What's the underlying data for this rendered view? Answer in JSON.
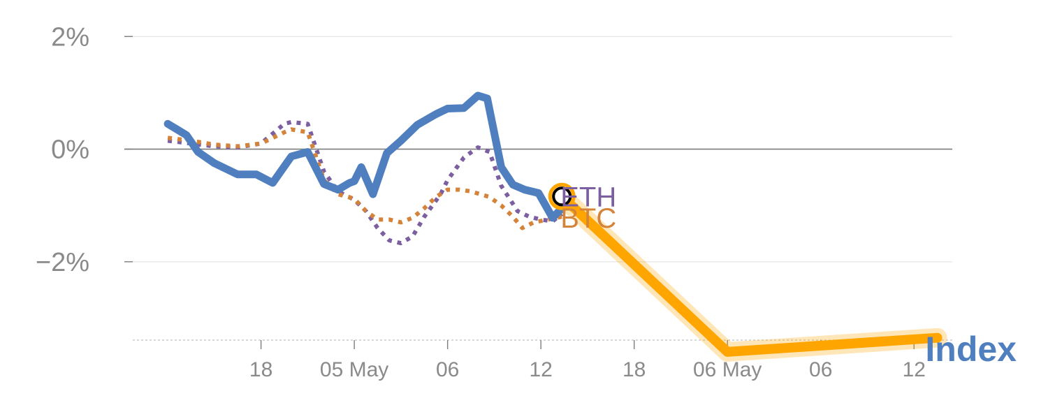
{
  "chart_data": {
    "type": "line",
    "y_tick_labels": [
      "2%",
      "0%",
      "−2%"
    ],
    "y_tick_values": [
      2,
      0,
      -2
    ],
    "ylim": [
      -3.8,
      2.4
    ],
    "x_tick_labels": [
      "18",
      "05 May",
      "06",
      "12",
      "18",
      "06 May",
      "06",
      "12"
    ],
    "x_tick_positions": [
      4,
      8,
      12,
      16,
      20,
      24,
      28,
      32
    ],
    "xlim": [
      -1.5,
      33.7
    ],
    "grid": true,
    "series": [
      {
        "name": "Index",
        "color": "#4f7fbf",
        "style": "solid",
        "x": [
          0,
          0.8,
          1.3,
          2,
          3,
          3.8,
          4.5,
          5.3,
          6,
          6.7,
          7.3,
          7.8,
          8,
          8.3,
          8.8,
          9.4,
          10,
          10.7,
          11.5,
          12,
          12.7,
          13.3,
          13.7,
          14.3,
          14.8,
          15.3,
          15.9,
          16.5,
          16.9
        ],
        "y": [
          0.45,
          0.25,
          -0.05,
          -0.25,
          -0.45,
          -0.45,
          -0.6,
          -0.13,
          -0.05,
          -0.62,
          -0.72,
          -0.6,
          -0.57,
          -0.32,
          -0.8,
          -0.07,
          0.15,
          0.43,
          0.62,
          0.72,
          0.73,
          0.95,
          0.9,
          -0.32,
          -0.63,
          -0.72,
          -0.78,
          -1.22,
          -1.05
        ]
      },
      {
        "name": "ETH",
        "color": "#7b5fa1",
        "style": "dotted",
        "x": [
          0,
          1,
          2,
          3,
          4,
          5,
          5.3,
          6,
          6.7,
          7.3,
          8,
          8.5,
          9,
          9.5,
          10,
          10.5,
          11,
          11.7,
          12,
          12.7,
          13.3,
          13.8,
          14.3,
          15,
          15.5,
          16,
          16.5,
          16.9
        ],
        "y": [
          0.15,
          0.1,
          0.05,
          0.03,
          0.1,
          0.45,
          0.48,
          0.45,
          -0.4,
          -0.75,
          -0.9,
          -1.1,
          -1.4,
          -1.62,
          -1.67,
          -1.55,
          -1.2,
          -0.8,
          -0.55,
          -0.15,
          0.03,
          -0.05,
          -0.65,
          -1.1,
          -1.2,
          -1.25,
          -1.28,
          -1.15
        ]
      },
      {
        "name": "BTC",
        "color": "#d4843a",
        "style": "dotted",
        "x": [
          0,
          1,
          2,
          3,
          4,
          5,
          5.3,
          6,
          6.7,
          7.3,
          8,
          8.5,
          9,
          9.5,
          10,
          10.5,
          11,
          11.5,
          12,
          12.5,
          13,
          13.8,
          14.3,
          14.8,
          15.2,
          15.7,
          16.3,
          16.9
        ],
        "y": [
          0.2,
          0.15,
          0.08,
          0.05,
          0.1,
          0.3,
          0.35,
          0.3,
          -0.55,
          -0.8,
          -0.88,
          -1.1,
          -1.25,
          -1.25,
          -1.3,
          -1.22,
          -1.05,
          -0.85,
          -0.72,
          -0.72,
          -0.75,
          -0.85,
          -1.0,
          -1.2,
          -1.4,
          -1.3,
          -1.25,
          -1.2
        ]
      },
      {
        "name": "",
        "color": "#ffa500",
        "style": "highlight",
        "x": [
          16.9,
          24,
          33
        ],
        "y": [
          -0.84,
          -3.6,
          -3.35
        ]
      }
    ],
    "end_marker": {
      "x": 16.9,
      "y": -0.84,
      "fill": "#ffa500",
      "stroke": "#000000"
    },
    "label_positions": [
      {
        "name": "ETH",
        "x": 16.9,
        "y": -0.84
      },
      {
        "name": "BTC",
        "x": 16.9,
        "y": -1.22
      }
    ],
    "corner_label": "Index"
  }
}
